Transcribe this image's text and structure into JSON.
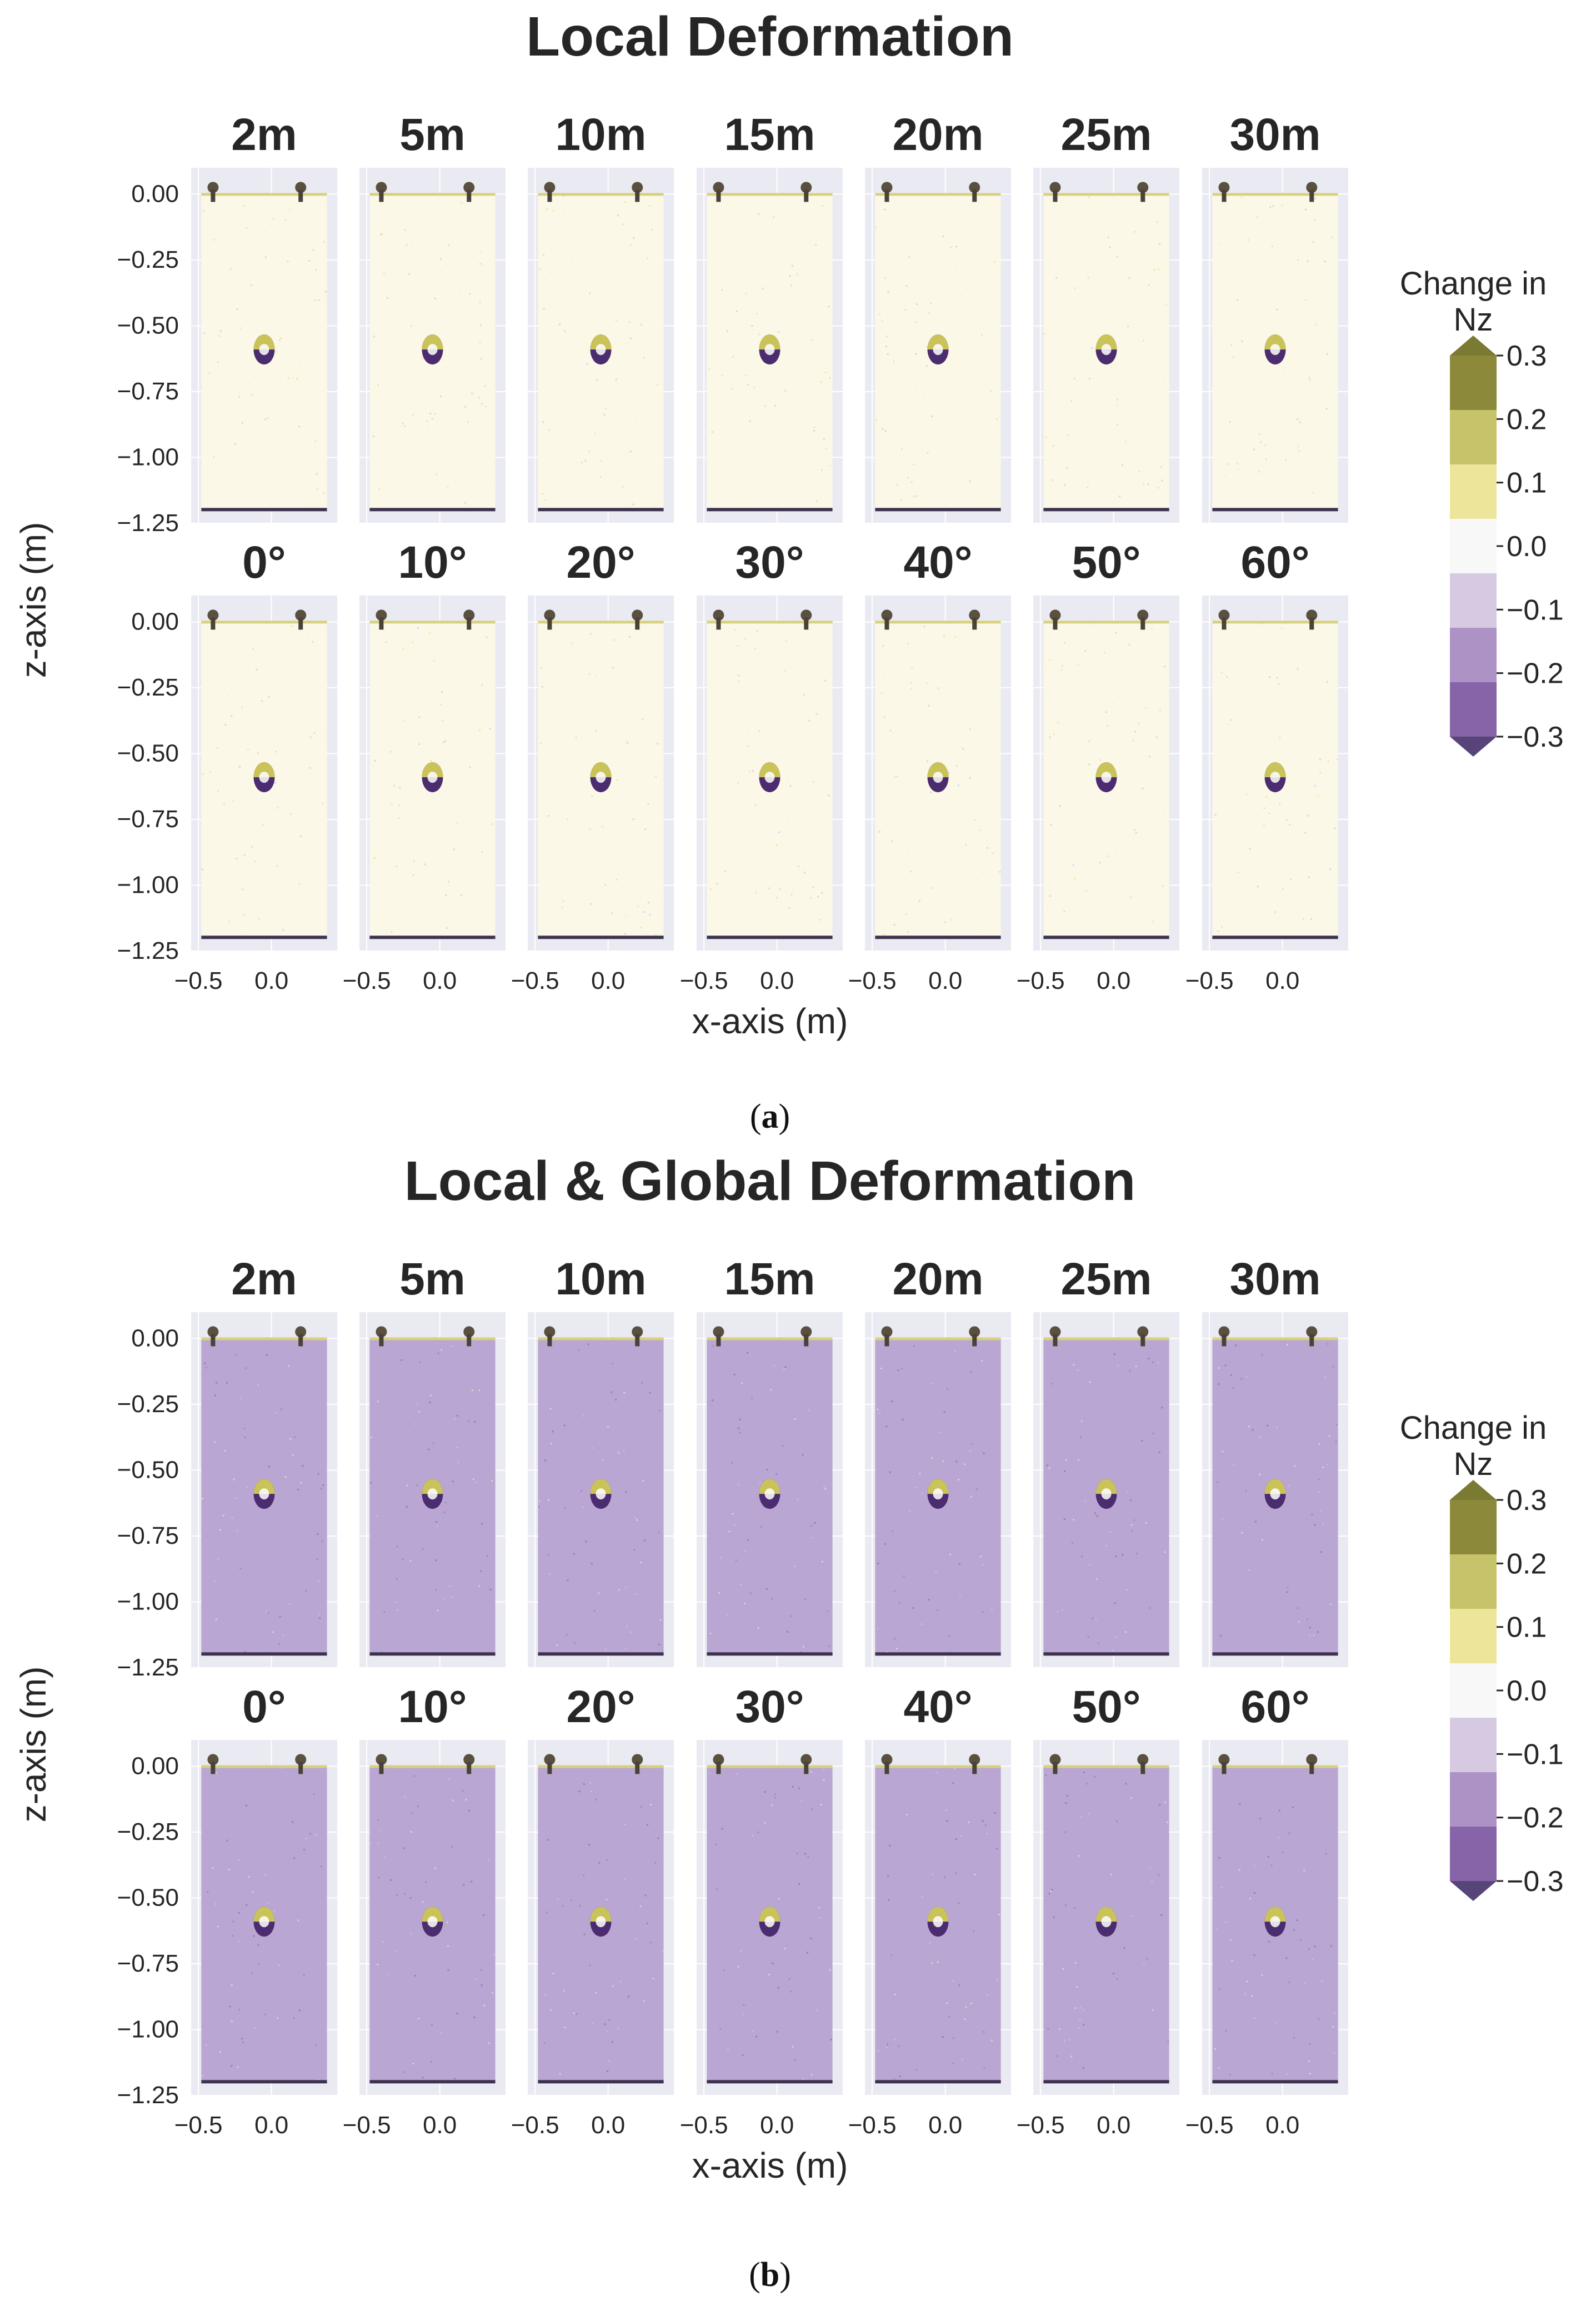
{
  "colors": {
    "panel_bg": "#eaeaf2",
    "grid": "#ffffff",
    "text": "#262626",
    "specimen_local": "#fbf8e8",
    "specimen_global": "#b9a6d2",
    "hole_top": "#c9c35a",
    "hole_bottom": "#4b2c6f"
  },
  "colorbar": {
    "title_line1": "Change in",
    "title_line2": "Nz",
    "levels": [
      "0.3",
      "0.2",
      "0.1",
      "0.0",
      "−0.1",
      "−0.2",
      "−0.3"
    ],
    "colors": [
      "#7a7a33",
      "#8c8a3a",
      "#c7c36a",
      "#ece59a",
      "#f8f8f8",
      "#d6cae3",
      "#ad92c6",
      "#8763a8",
      "#57457a"
    ]
  },
  "chart_data": [
    {
      "type": "heatmap",
      "title": "Local Deformation",
      "caption_letter": "a",
      "xlabel": "x-axis (m)",
      "ylabel": "z-axis (m)",
      "xlim": [
        -0.55,
        0.45
      ],
      "ylim": [
        -1.25,
        0.1
      ],
      "xticks": [
        "−0.5",
        "0.0"
      ],
      "yticks": [
        "0.00",
        "−0.25",
        "−0.50",
        "−0.75",
        "−1.00",
        "−1.25"
      ],
      "row1_labels": [
        "2m",
        "5m",
        "10m",
        "15m",
        "20m",
        "25m",
        "30m"
      ],
      "row2_labels": [
        "0°",
        "10°",
        "20°",
        "30°",
        "40°",
        "50°",
        "60°"
      ],
      "specimen": {
        "x_range": [
          -0.48,
          0.38
        ],
        "z_range": [
          -1.2,
          0.0
        ],
        "hole_center": [
          -0.05,
          -0.59
        ]
      },
      "dominant_value": 0.02,
      "colorbar_range": [
        -0.3,
        0.3
      ]
    },
    {
      "type": "heatmap",
      "title": "Local & Global Deformation",
      "caption_letter": "b",
      "xlabel": "x-axis (m)",
      "ylabel": "z-axis (m)",
      "xlim": [
        -0.55,
        0.45
      ],
      "ylim": [
        -1.25,
        0.1
      ],
      "xticks": [
        "−0.5",
        "0.0"
      ],
      "yticks": [
        "0.00",
        "−0.25",
        "−0.50",
        "−0.75",
        "−1.00",
        "−1.25"
      ],
      "row1_labels": [
        "2m",
        "5m",
        "10m",
        "15m",
        "20m",
        "25m",
        "30m"
      ],
      "row2_labels": [
        "0°",
        "10°",
        "20°",
        "30°",
        "40°",
        "50°",
        "60°"
      ],
      "specimen": {
        "x_range": [
          -0.48,
          0.38
        ],
        "z_range": [
          -1.2,
          0.0
        ],
        "hole_center": [
          -0.05,
          -0.59
        ]
      },
      "dominant_value": -0.12,
      "colorbar_range": [
        -0.3,
        0.3
      ]
    }
  ]
}
